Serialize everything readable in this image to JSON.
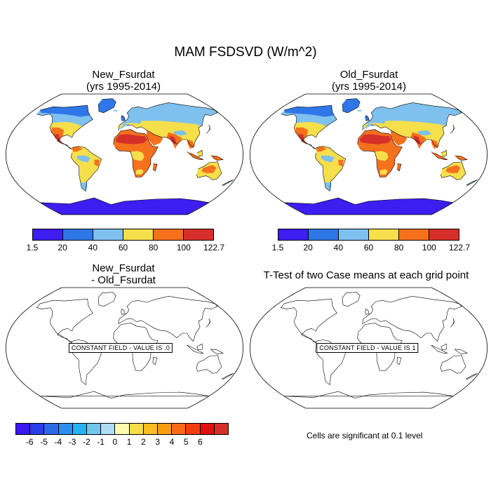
{
  "title": "MAM FSDSVD (W/m^2)",
  "panels": {
    "new": {
      "line1": "New_Fsurdat",
      "line2": "(yrs 1995-2014)"
    },
    "old": {
      "line1": "Old_Fsurdat",
      "line2": "(yrs 1995-2014)"
    },
    "diff": {
      "line1": "New_Fsurdat",
      "line2": "- Old_Fsurdat",
      "constant": "CONSTANT FIELD - VALUE IS .0"
    },
    "ttest": {
      "title": "T-Test of two Case means at each grid point",
      "constant": "CONSTANT FIELD - VALUE IS 1"
    }
  },
  "colorbar_top": {
    "colors": [
      "#3d1df0",
      "#2f77e8",
      "#7ec0ee",
      "#f5e04c",
      "#f7711d",
      "#d7302a"
    ],
    "labels": [
      "1.5",
      "20",
      "40",
      "60",
      "80",
      "100",
      "122.7"
    ]
  },
  "colorbar_diff": {
    "colors": [
      "#3b17f0",
      "#2a3de6",
      "#2d6ae8",
      "#2b8fef",
      "#27b2f5",
      "#72c6ee",
      "#b0dcf5",
      "#fefbae",
      "#f6de4a",
      "#fbbd1f",
      "#f89c10",
      "#f76c10",
      "#f33c0e",
      "#e0110f",
      "#d7302a"
    ],
    "labels": [
      "-6",
      "-5",
      "-4",
      "-3",
      "-2",
      "-1",
      "0",
      "1",
      "2",
      "3",
      "4",
      "5",
      "6"
    ]
  },
  "significance_note": "Cells are significant at 0.1 level"
}
